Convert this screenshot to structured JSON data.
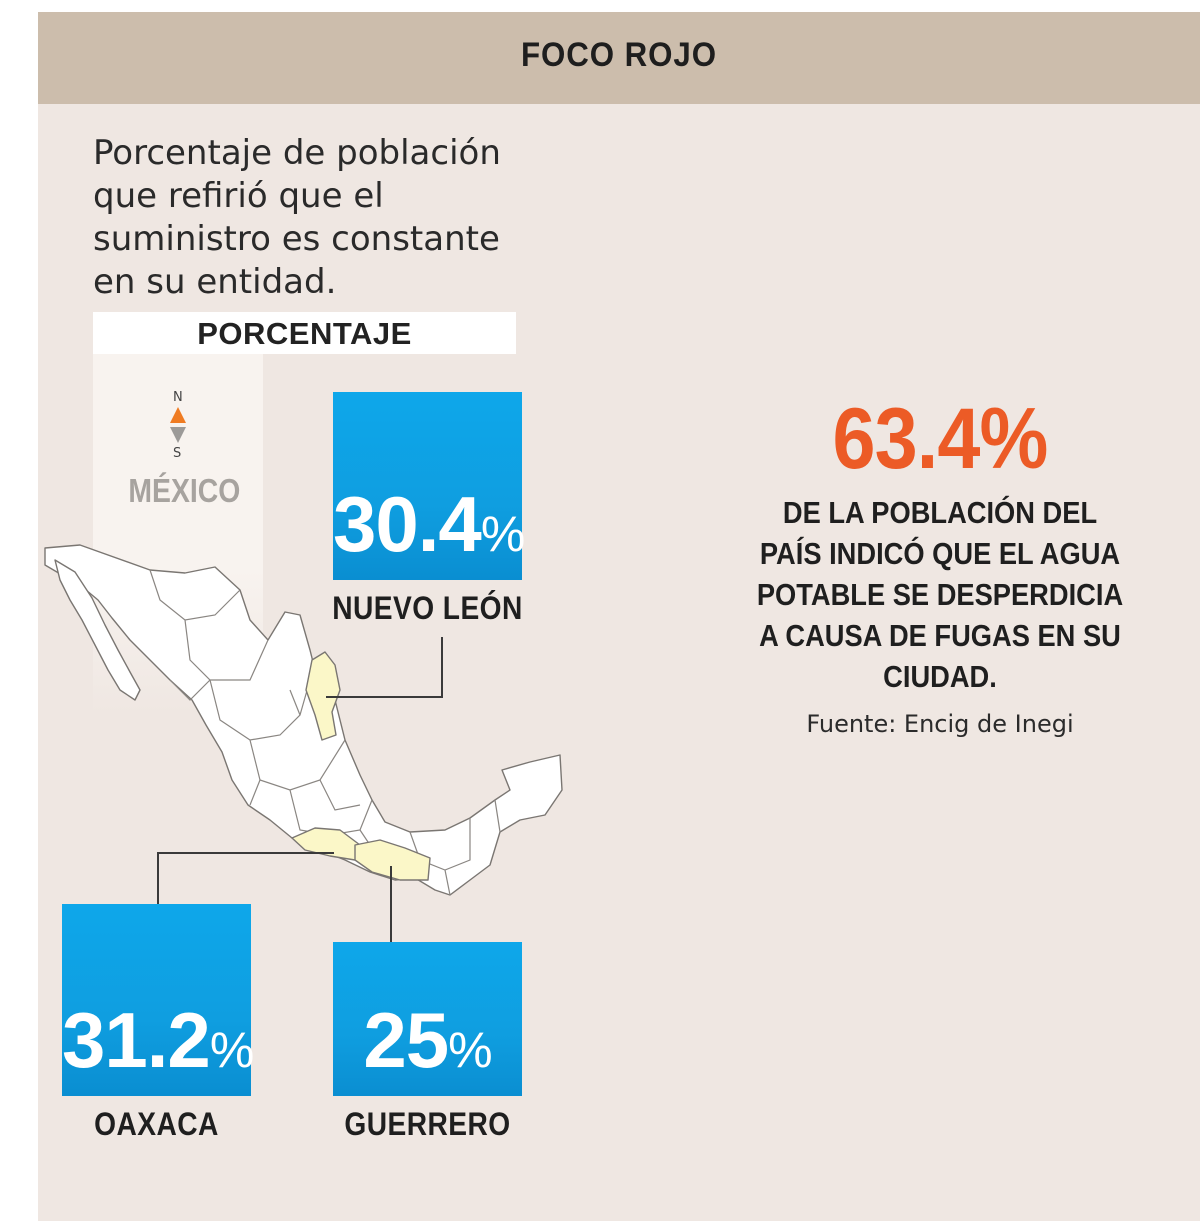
{
  "header": {
    "title": "FOCO ROJO"
  },
  "subtitle": "Porcentaje de población que refirió que el suministro es constante en su entidad.",
  "legend": {
    "label": "PORCENTAJE"
  },
  "compass": {
    "north": "N",
    "south": "S"
  },
  "country_label": "MÉXICO",
  "colors": {
    "accent": "#ec5b26",
    "box": "#0ea7ea",
    "highlight_state": "#fbf7c8",
    "header_band": "#ccbdac",
    "panel": "#efe7e2"
  },
  "chart_data": {
    "type": "map",
    "title": "FOCO ROJO",
    "unit": "%",
    "regions": [
      {
        "name": "NUEVO LEÓN",
        "value": 30.4,
        "display": "30.4"
      },
      {
        "name": "OAXACA",
        "value": 31.2,
        "display": "31.2"
      },
      {
        "name": "GUERRERO",
        "value": 25,
        "display": "25"
      }
    ]
  },
  "stat": {
    "value": "63.4%",
    "description": "DE LA POBLACIÓN DEL PAÍS INDICÓ QUE EL AGUA POTABLE SE DESPERDICIA A CAUSA DE FUGAS EN SU CIUDAD."
  },
  "source": "Fuente: Encig de Inegi"
}
